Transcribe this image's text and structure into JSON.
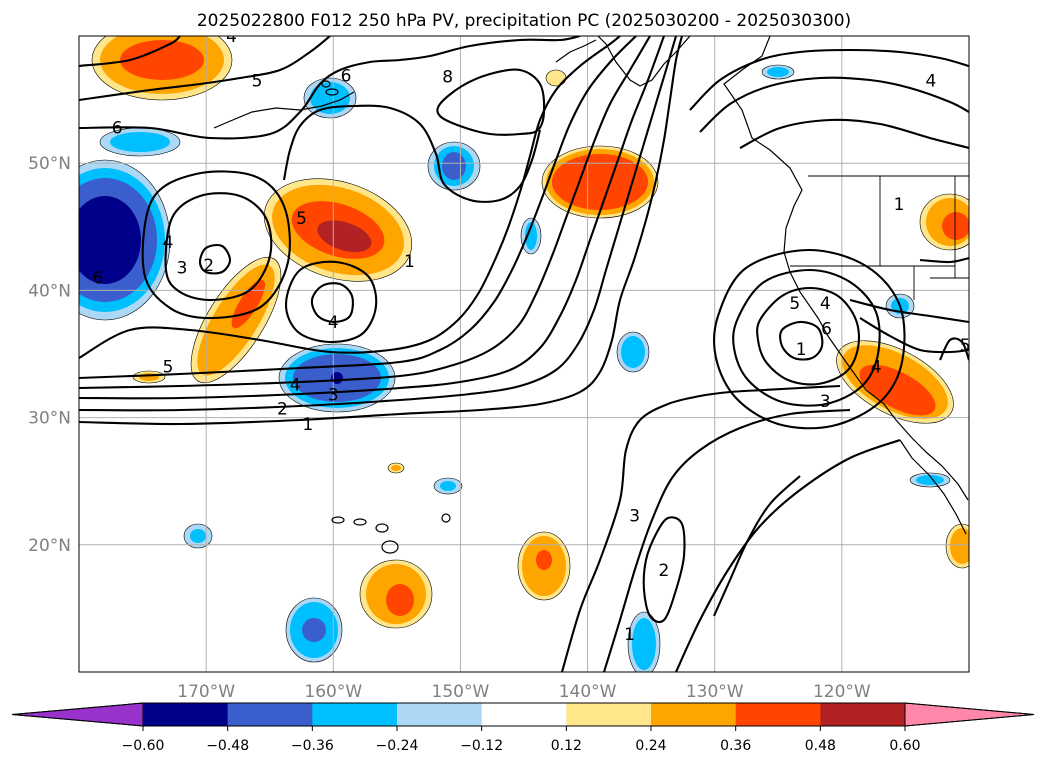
{
  "chart_data": {
    "type": "map_contour",
    "title": "2025022800 F012 250 hPa PV, precipitation PC (2025030200 - 2025030300)",
    "x_ticks": [
      "170°W",
      "160°W",
      "150°W",
      "140°W",
      "130°W",
      "120°W"
    ],
    "y_ticks": [
      "20°N",
      "30°N",
      "40°N",
      "50°N"
    ],
    "lon_range": [
      -180,
      -110
    ],
    "lat_range": [
      10,
      60
    ],
    "grid": true,
    "colorbar": {
      "orientation": "horizontal",
      "extend": "both",
      "ticks": [
        "−0.60",
        "−0.48",
        "−0.36",
        "−0.24",
        "−0.12",
        "0.12",
        "0.24",
        "0.36",
        "0.48",
        "0.60"
      ],
      "colors": [
        "#9932cc",
        "#00008b",
        "#3a5fcd",
        "#00bfff",
        "#add8f5",
        "#ffffff",
        "#ffe68a",
        "#ffa500",
        "#ff4500",
        "#b22222",
        "#ff88aa"
      ]
    },
    "contour_labels": [
      {
        "text": "8",
        "lon": -151,
        "lat": 56.8
      },
      {
        "text": "6",
        "lon": -177,
        "lat": 52.8
      },
      {
        "text": "6",
        "lon": -159,
        "lat": 56.9
      },
      {
        "text": "5",
        "lon": -166,
        "lat": 56.5
      },
      {
        "text": "4",
        "lon": -168,
        "lat": 60.0
      },
      {
        "text": "4",
        "lon": -173,
        "lat": 43.8
      },
      {
        "text": "3",
        "lon": -171.9,
        "lat": 41.8
      },
      {
        "text": "2",
        "lon": -169.8,
        "lat": 42.0
      },
      {
        "text": "6",
        "lon": -178.5,
        "lat": 41.0
      },
      {
        "text": "5",
        "lon": -162.5,
        "lat": 45.7
      },
      {
        "text": "1",
        "lon": -154,
        "lat": 42.3
      },
      {
        "text": "4",
        "lon": -160,
        "lat": 37.5
      },
      {
        "text": "5",
        "lon": -173,
        "lat": 34.0
      },
      {
        "text": "4",
        "lon": -163,
        "lat": 32.6
      },
      {
        "text": "3",
        "lon": -160,
        "lat": 31.8
      },
      {
        "text": "2",
        "lon": -164,
        "lat": 30.7
      },
      {
        "text": "1",
        "lon": -162,
        "lat": 29.5
      },
      {
        "text": "5",
        "lon": -123.7,
        "lat": 39.0
      },
      {
        "text": "4",
        "lon": -121.3,
        "lat": 39.0
      },
      {
        "text": "6",
        "lon": -121.2,
        "lat": 37.0
      },
      {
        "text": "1",
        "lon": -123.2,
        "lat": 35.4
      },
      {
        "text": "3",
        "lon": -121.3,
        "lat": 31.3
      },
      {
        "text": "4",
        "lon": -117.3,
        "lat": 34.0
      },
      {
        "text": "5",
        "lon": -110.3,
        "lat": 35.7
      },
      {
        "text": "4",
        "lon": -113,
        "lat": 56.5
      },
      {
        "text": "1",
        "lon": -115.5,
        "lat": 46.8
      },
      {
        "text": "3",
        "lon": -136.3,
        "lat": 22.3
      },
      {
        "text": "2",
        "lon": -134,
        "lat": 18.0
      },
      {
        "text": "1",
        "lon": -136.7,
        "lat": 13.0
      }
    ],
    "precip_features": [
      {
        "sign": "positive",
        "lon": -163,
        "lat": 45.5,
        "peak": 0.5
      },
      {
        "sign": "positive",
        "lon": -138.5,
        "lat": 48.5,
        "peak": 0.45
      },
      {
        "sign": "positive",
        "lon": -172.5,
        "lat": 59.0,
        "peak": 0.45
      },
      {
        "sign": "positive",
        "lon": -168,
        "lat": 38.5,
        "peak": 0.38
      },
      {
        "sign": "positive",
        "lon": -119.5,
        "lat": 32.3,
        "peak": 0.45
      },
      {
        "sign": "positive",
        "lon": -112,
        "lat": 44.8,
        "peak": 0.4
      },
      {
        "sign": "positive",
        "lon": -156.5,
        "lat": 15.8,
        "peak": 0.4
      },
      {
        "sign": "positive",
        "lon": -144,
        "lat": 17.8,
        "peak": 0.38
      },
      {
        "sign": "positive",
        "lon": -110.3,
        "lat": 20.0,
        "peak": 0.3
      },
      {
        "sign": "negative",
        "lon": -177,
        "lat": 43.2,
        "peak": -0.6
      },
      {
        "sign": "negative",
        "lon": -160.7,
        "lat": 32.8,
        "peak": -0.52
      },
      {
        "sign": "negative",
        "lon": -150.5,
        "lat": 49.5,
        "peak": -0.4
      },
      {
        "sign": "negative",
        "lon": -159.5,
        "lat": 15.2,
        "peak": -0.42
      },
      {
        "sign": "negative",
        "lon": -174,
        "lat": 51.5,
        "peak": -0.3
      },
      {
        "sign": "negative",
        "lon": -159.5,
        "lat": 57.5,
        "peak": -0.3
      },
      {
        "sign": "negative",
        "lon": -135.5,
        "lat": 13.0,
        "peak": -0.3
      },
      {
        "sign": "negative",
        "lon": -135.5,
        "lat": 35.2,
        "peak": -0.3
      }
    ]
  }
}
